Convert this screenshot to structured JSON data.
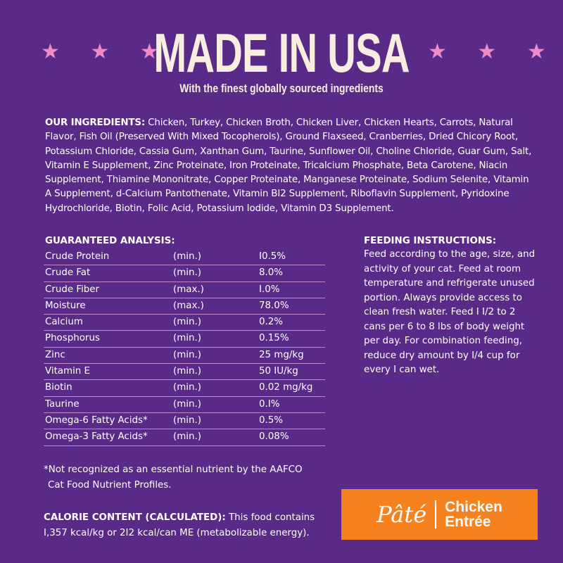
{
  "header": {
    "title": "MADE IN USA",
    "subtitle": "With the finest globally sourced ingredients",
    "stars": "★ ★ ★",
    "star_color": "#f08bc8"
  },
  "ingredients": {
    "label": "OUR INGREDIENTS:",
    "text": " Chicken, Turkey, Chicken Broth, Chicken Liver, Chicken Hearts, Carrots, Natural Flavor, Fish Oil (Preserved With Mixed Tocopherols), Ground Flaxseed, Cranberries, Dried Chicory Root, Potassium Chloride, Cassia Gum, Xanthan Gum, Taurine, Sunflower Oil, Choline Chloride, Guar Gum, Salt, Vitamin E Supplement, Zinc Proteinate, Iron Proteinate, Tricalcium Phosphate, Beta Carotene, Niacin Supplement, Thiamine Mononitrate, Copper Proteinate, Manganese Proteinate, Sodium Selenite, Vitamin A Supplement, d-Calcium Pantothenate, Vitamin BI2 Supplement, Riboflavin Supplement, Pyridoxine Hydrochloride, Biotin, Folic Acid, Potassium Iodide, Vitamin D3 Supplement."
  },
  "analysis": {
    "title": "GUARANTEED ANALYSIS:",
    "rows": [
      [
        "Crude Protein",
        "(min.)",
        "I0.5%"
      ],
      [
        "Crude Fat",
        "(min.)",
        "8.0%"
      ],
      [
        "Crude Fiber",
        "(max.)",
        "I.0%"
      ],
      [
        "Moisture",
        "(max.)",
        "78.0%"
      ],
      [
        "Calcium",
        "(min.)",
        "0.2%"
      ],
      [
        "Phosphorus",
        "(min.)",
        "0.15%"
      ],
      [
        "Zinc",
        "(min.)",
        "25 mg/kg"
      ],
      [
        "Vitamin E",
        "(min.)",
        "50 IU/kg"
      ],
      [
        "Biotin",
        "(min.)",
        "0.02 mg/kg"
      ],
      [
        "Taurine",
        "(min.)",
        "0.I%"
      ],
      [
        "Omega-6 Fatty Acids*",
        "(min.)",
        "0.5%"
      ],
      [
        "Omega-3 Fatty Acids*",
        "(min.)",
        "0.08%"
      ]
    ]
  },
  "feeding": {
    "title": "FEEDING INSTRUCTIONS:",
    "text": "Feed according to the age, size, and activity of your cat. Feed at room temperature and refrigerate unused portion. Always provide access to clean fresh water. Feed I I/2 to 2 cans per 6 to 8 lbs of body weight per day. For combination feeding, reduce dry amount by I/4 cup for every I can wet."
  },
  "footnote": {
    "line1": "*Not recognized as an essential nutrient by the AAFCO",
    "line2": "Cat Food Nutrient Profiles."
  },
  "calorie": {
    "label": "CALORIE CONTENT (CALCULATED):",
    "line1": " This food contains",
    "line2": "I,357 kcal/kg or 2I2 kcal/can ME (metabolizable energy)."
  },
  "badge": {
    "style": "Pâté",
    "line1": "Chicken",
    "line2": "Entrée",
    "color": "#f5821f"
  },
  "colors": {
    "background": "#5a2a88",
    "title": "#f6efdf",
    "divider": "#c384c8"
  }
}
